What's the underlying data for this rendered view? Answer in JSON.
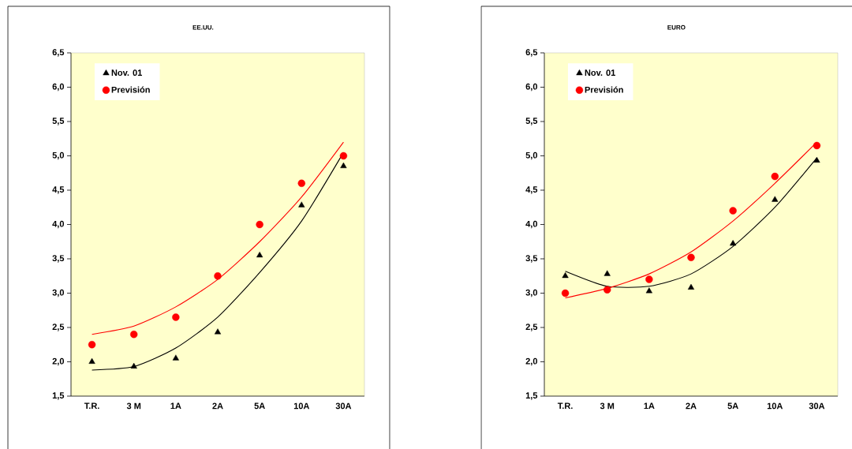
{
  "chart_data": [
    {
      "type": "scatter",
      "title": "EE.UU.",
      "categories": [
        "T.R.",
        "3 M",
        "1A",
        "2A",
        "5A",
        "10A",
        "30A"
      ],
      "ylim": [
        1.5,
        6.5
      ],
      "yticks": [
        {
          "value": 1.5,
          "label": "1,5"
        },
        {
          "value": 2.0,
          "label": "2,0"
        },
        {
          "value": 2.5,
          "label": "2,5"
        },
        {
          "value": 3.0,
          "label": "3,0"
        },
        {
          "value": 3.5,
          "label": "3,5"
        },
        {
          "value": 4.0,
          "label": "4,0"
        },
        {
          "value": 4.5,
          "label": "4,5"
        },
        {
          "value": 5.0,
          "label": "5,0"
        },
        {
          "value": 5.5,
          "label": "5,5"
        },
        {
          "value": 6.0,
          "label": "6,0"
        },
        {
          "value": 6.5,
          "label": "6,5"
        }
      ],
      "legend": "top left",
      "series": [
        {
          "name": "Nov. 01",
          "marker": "triangle",
          "color": "#000000",
          "values": [
            2.0,
            1.93,
            2.05,
            2.43,
            3.55,
            4.28,
            4.85
          ]
        },
        {
          "name": "Previsión",
          "marker": "circle",
          "color": "#ff0000",
          "values": [
            2.25,
            2.4,
            2.65,
            3.25,
            4.0,
            4.6,
            5.0
          ]
        },
        {
          "type": "line",
          "color": "#000000",
          "values": [
            1.88,
            1.93,
            2.2,
            2.65,
            3.3,
            4.05,
            5.05
          ]
        },
        {
          "type": "line",
          "color": "#ff0000",
          "values": [
            2.4,
            2.52,
            2.8,
            3.2,
            3.75,
            4.4,
            5.2
          ]
        }
      ]
    },
    {
      "type": "scatter",
      "title": "EURO",
      "categories": [
        "T.R.",
        "3 M",
        "1A",
        "2A",
        "5A",
        "10A",
        "30A"
      ],
      "ylim": [
        1.5,
        6.5
      ],
      "yticks": [
        {
          "value": 1.5,
          "label": "1,5"
        },
        {
          "value": 2.0,
          "label": "2,0"
        },
        {
          "value": 2.5,
          "label": "2,5"
        },
        {
          "value": 3.0,
          "label": "3,0"
        },
        {
          "value": 3.5,
          "label": "3,5"
        },
        {
          "value": 4.0,
          "label": "4,0"
        },
        {
          "value": 4.5,
          "label": "4,5"
        },
        {
          "value": 5.0,
          "label": "5,0"
        },
        {
          "value": 5.5,
          "label": "5,5"
        },
        {
          "value": 6.0,
          "label": "6,0"
        },
        {
          "value": 6.5,
          "label": "6,5"
        }
      ],
      "legend": "top left",
      "series": [
        {
          "name": "Nov. 01",
          "marker": "triangle",
          "color": "#000000",
          "values": [
            3.25,
            3.28,
            3.03,
            3.08,
            3.72,
            4.36,
            4.93
          ]
        },
        {
          "name": "Previsión",
          "marker": "circle",
          "color": "#ff0000",
          "values": [
            3.0,
            3.05,
            3.2,
            3.52,
            4.2,
            4.7,
            5.15
          ]
        },
        {
          "type": "line",
          "color": "#000000",
          "values": [
            3.32,
            3.1,
            3.1,
            3.28,
            3.68,
            4.25,
            4.97
          ]
        },
        {
          "type": "line",
          "color": "#ff0000",
          "values": [
            2.93,
            3.07,
            3.28,
            3.6,
            4.05,
            4.6,
            5.2
          ]
        }
      ]
    }
  ]
}
